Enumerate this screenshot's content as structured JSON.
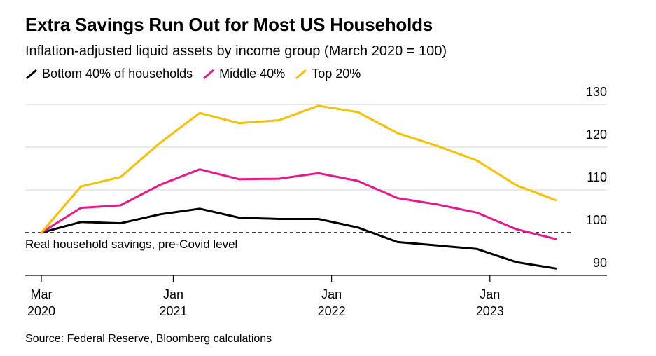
{
  "chart_data": {
    "type": "line",
    "title": "Extra Savings Run Out for Most US Households",
    "subtitle": "Inflation-adjusted liquid assets by income group (March 2020 = 100)",
    "x": [
      "2020-03",
      "2020-06",
      "2020-09",
      "2020-12",
      "2021-03",
      "2021-06",
      "2021-09",
      "2021-12",
      "2022-03",
      "2022-06",
      "2022-09",
      "2022-12",
      "2023-03",
      "2023-06"
    ],
    "series": [
      {
        "name": "Bottom 40% of households",
        "color": "#000000",
        "values": [
          100,
          102.5,
          102.2,
          104.3,
          105.6,
          103.5,
          103.2,
          103.2,
          101.2,
          97.8,
          97,
          96.2,
          93.1,
          91.6
        ]
      },
      {
        "name": "Middle 40%",
        "color": "#e8178c",
        "values": [
          100,
          105.8,
          106.4,
          111.2,
          114.8,
          112.5,
          112.6,
          113.9,
          112.1,
          108.1,
          106.6,
          104.7,
          100.8,
          98.5
        ]
      },
      {
        "name": "Top 20%",
        "color": "#f5c000",
        "values": [
          100,
          110.8,
          113,
          121,
          128,
          125.6,
          126.3,
          129.7,
          128.2,
          123.3,
          120.3,
          116.9,
          111.1,
          107.6
        ]
      }
    ],
    "ylim": [
      90,
      130
    ],
    "yticks": [
      90,
      100,
      110,
      120,
      130
    ],
    "xticks": [
      {
        "date": "2020-03",
        "line1": "Mar",
        "line2": "2020"
      },
      {
        "date": "2021-01",
        "line1": "Jan",
        "line2": "2021"
      },
      {
        "date": "2022-01",
        "line1": "Jan",
        "line2": "2022"
      },
      {
        "date": "2023-01",
        "line1": "Jan",
        "line2": "2023"
      }
    ],
    "reference_line": {
      "value": 100,
      "label": "Real household savings, pre-Covid level",
      "style": "dashed"
    },
    "grid": true,
    "legend_position": "top-left",
    "source": "Source: Federal Reserve, Bloomberg calculations"
  }
}
